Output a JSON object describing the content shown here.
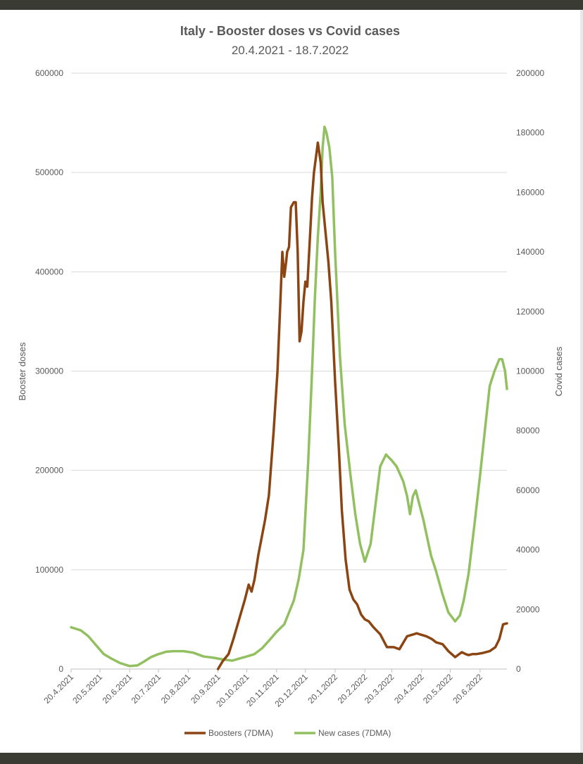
{
  "chart_data": {
    "type": "line",
    "title": "Italy - Booster doses vs Covid cases",
    "subtitle": "20.4.2021 - 18.7.2022",
    "ylabel": "Booster doses",
    "y2label": "Covid cases",
    "ylim": [
      0,
      600000
    ],
    "y2lim": [
      0,
      200000
    ],
    "y_ticks": [
      "0",
      "100000",
      "200000",
      "300000",
      "400000",
      "500000",
      "600000"
    ],
    "y2_ticks": [
      "0",
      "20000",
      "40000",
      "60000",
      "80000",
      "100000",
      "120000",
      "140000",
      "160000",
      "180000",
      "200000"
    ],
    "x_ticks": [
      "20.4.2021",
      "20.5.2021",
      "20.6.2021",
      "20.7.2021",
      "20.8.2021",
      "20.9.2021",
      "20.10.2021",
      "20.11.2021",
      "20.12.2021",
      "20.1.2022",
      "20.2.2022",
      "20.3.2022",
      "20.4.2022",
      "20.5.2022",
      "20.6.2022"
    ],
    "x_range": [
      "2021-04-20",
      "2022-07-18"
    ],
    "legend_position": "bottom",
    "grid": "horizontal",
    "series": [
      {
        "name": "Boosters (7DMA)",
        "axis": "left",
        "color": "#8b4513",
        "x": [
          "2021-09-20",
          "2021-09-25",
          "2021-10-01",
          "2021-10-06",
          "2021-10-12",
          "2021-10-18",
          "2021-10-22",
          "2021-10-25",
          "2021-10-28",
          "2021-11-01",
          "2021-11-04",
          "2021-11-08",
          "2021-11-12",
          "2021-11-17",
          "2021-11-21",
          "2021-11-24",
          "2021-11-26",
          "2021-11-28",
          "2021-11-30",
          "2021-12-01",
          "2021-12-03",
          "2021-12-05",
          "2021-12-08",
          "2021-12-10",
          "2021-12-12",
          "2021-12-14",
          "2021-12-16",
          "2021-12-18",
          "2021-12-20",
          "2021-12-22",
          "2021-12-24",
          "2021-12-27",
          "2021-12-29",
          "2022-01-02",
          "2022-01-05",
          "2022-01-07",
          "2022-01-10",
          "2022-01-13",
          "2022-01-16",
          "2022-01-20",
          "2022-01-24",
          "2022-01-27",
          "2022-01-31",
          "2022-02-04",
          "2022-02-08",
          "2022-02-12",
          "2022-02-16",
          "2022-02-20",
          "2022-02-24",
          "2022-03-01",
          "2022-03-08",
          "2022-03-15",
          "2022-03-22",
          "2022-03-28",
          "2022-04-05",
          "2022-04-12",
          "2022-04-15",
          "2022-04-18",
          "2022-04-25",
          "2022-05-01",
          "2022-05-05",
          "2022-05-12",
          "2022-05-18",
          "2022-05-25",
          "2022-06-01",
          "2022-06-05",
          "2022-06-08",
          "2022-06-12",
          "2022-06-16",
          "2022-06-22",
          "2022-06-30",
          "2022-07-06",
          "2022-07-10",
          "2022-07-14",
          "2022-07-18"
        ],
        "values": [
          0,
          8000,
          15000,
          30000,
          50000,
          70000,
          85000,
          78000,
          90000,
          115000,
          130000,
          150000,
          175000,
          240000,
          300000,
          370000,
          420000,
          395000,
          410000,
          420000,
          425000,
          465000,
          470000,
          470000,
          420000,
          330000,
          340000,
          370000,
          390000,
          385000,
          420000,
          475000,
          500000,
          530000,
          510000,
          470000,
          440000,
          410000,
          370000,
          290000,
          220000,
          160000,
          110000,
          80000,
          70000,
          65000,
          55000,
          50000,
          48000,
          42000,
          35000,
          22000,
          22000,
          20000,
          33000,
          35000,
          36000,
          35000,
          33000,
          30000,
          27000,
          25000,
          18000,
          12000,
          17000,
          15000,
          14000,
          15000,
          15000,
          16000,
          18000,
          22000,
          30000,
          45000,
          46000
        ]
      },
      {
        "name": "New cases (7DMA)",
        "axis": "right",
        "color": "#92c060",
        "x": [
          "2021-04-20",
          "2021-04-30",
          "2021-05-08",
          "2021-05-16",
          "2021-05-24",
          "2021-06-01",
          "2021-06-10",
          "2021-06-20",
          "2021-06-28",
          "2021-07-05",
          "2021-07-12",
          "2021-07-20",
          "2021-07-28",
          "2021-08-05",
          "2021-08-15",
          "2021-08-25",
          "2021-09-05",
          "2021-09-15",
          "2021-09-25",
          "2021-10-05",
          "2021-10-12",
          "2021-10-20",
          "2021-10-28",
          "2021-11-05",
          "2021-11-12",
          "2021-11-20",
          "2021-11-28",
          "2021-12-03",
          "2021-12-08",
          "2021-12-13",
          "2021-12-18",
          "2021-12-23",
          "2021-12-27",
          "2021-12-30",
          "2022-01-02",
          "2022-01-05",
          "2022-01-07",
          "2022-01-09",
          "2022-01-11",
          "2022-01-14",
          "2022-01-17",
          "2022-01-20",
          "2022-01-25",
          "2022-01-30",
          "2022-02-05",
          "2022-02-10",
          "2022-02-15",
          "2022-02-20",
          "2022-02-26",
          "2022-03-03",
          "2022-03-08",
          "2022-03-14",
          "2022-03-20",
          "2022-03-25",
          "2022-04-01",
          "2022-04-05",
          "2022-04-08",
          "2022-04-11",
          "2022-04-14",
          "2022-04-18",
          "2022-04-22",
          "2022-04-26",
          "2022-04-30",
          "2022-05-05",
          "2022-05-12",
          "2022-05-18",
          "2022-05-25",
          "2022-05-30",
          "2022-06-03",
          "2022-06-08",
          "2022-06-14",
          "2022-06-20",
          "2022-06-25",
          "2022-06-30",
          "2022-07-05",
          "2022-07-10",
          "2022-07-13",
          "2022-07-16",
          "2022-07-18"
        ],
        "values": [
          14000,
          13000,
          11000,
          8000,
          5000,
          3500,
          2000,
          1000,
          1200,
          2500,
          4000,
          5000,
          5800,
          6000,
          6000,
          5500,
          4200,
          3800,
          3200,
          2800,
          3500,
          4200,
          5000,
          7000,
          9500,
          12500,
          15000,
          19000,
          23000,
          30000,
          40000,
          70000,
          100000,
          125000,
          145000,
          160000,
          175000,
          182000,
          180000,
          175000,
          165000,
          140000,
          105000,
          82000,
          65000,
          52000,
          42000,
          36000,
          42000,
          55000,
          68000,
          72000,
          70000,
          68000,
          63000,
          58000,
          52000,
          58000,
          60000,
          55000,
          50000,
          44000,
          38000,
          33000,
          25000,
          19000,
          16000,
          18000,
          23000,
          32000,
          48000,
          65000,
          80000,
          95000,
          100000,
          104000,
          104000,
          100000,
          94000
        ]
      }
    ]
  }
}
